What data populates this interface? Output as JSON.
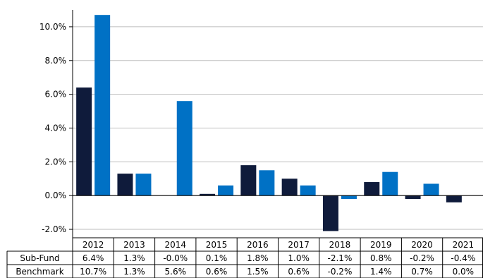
{
  "colors": {
    "sub_fund": "#0f1b3b",
    "benchmark": "#0071c5",
    "grid": "#bdbdbd",
    "axis": "#000000"
  },
  "chart_data": {
    "type": "bar",
    "categories": [
      "2012",
      "2013",
      "2014",
      "2015",
      "2016",
      "2017",
      "2018",
      "2019",
      "2020",
      "2021"
    ],
    "series": [
      {
        "name": "Sub-Fund",
        "values": [
          6.4,
          1.3,
          -0.0,
          0.1,
          1.8,
          1.0,
          -2.1,
          0.8,
          -0.2,
          -0.4
        ]
      },
      {
        "name": "Benchmark",
        "values": [
          10.7,
          1.3,
          5.6,
          0.6,
          1.5,
          0.6,
          -0.2,
          1.4,
          0.7,
          0.0
        ]
      }
    ],
    "ylim": [
      -2.5,
      11.0
    ],
    "yticks": [
      -2.0,
      0.0,
      2.0,
      4.0,
      6.0,
      8.0,
      10.0
    ],
    "ytick_labels": [
      "-2.0%",
      "0.0%",
      "2.0%",
      "4.0%",
      "6.0%",
      "8.0%",
      "10.0%"
    ],
    "grid": true,
    "table": {
      "rows": [
        {
          "label": "Sub-Fund",
          "cells": [
            "6.4%",
            "1.3%",
            "-0.0%",
            "0.1%",
            "1.8%",
            "1.0%",
            "-2.1%",
            "0.8%",
            "-0.2%",
            "-0.4%"
          ]
        },
        {
          "label": "Benchmark",
          "cells": [
            "10.7%",
            "1.3%",
            "5.6%",
            "0.6%",
            "1.5%",
            "0.6%",
            "-0.2%",
            "1.4%",
            "0.7%",
            "0.0%"
          ]
        }
      ]
    }
  }
}
